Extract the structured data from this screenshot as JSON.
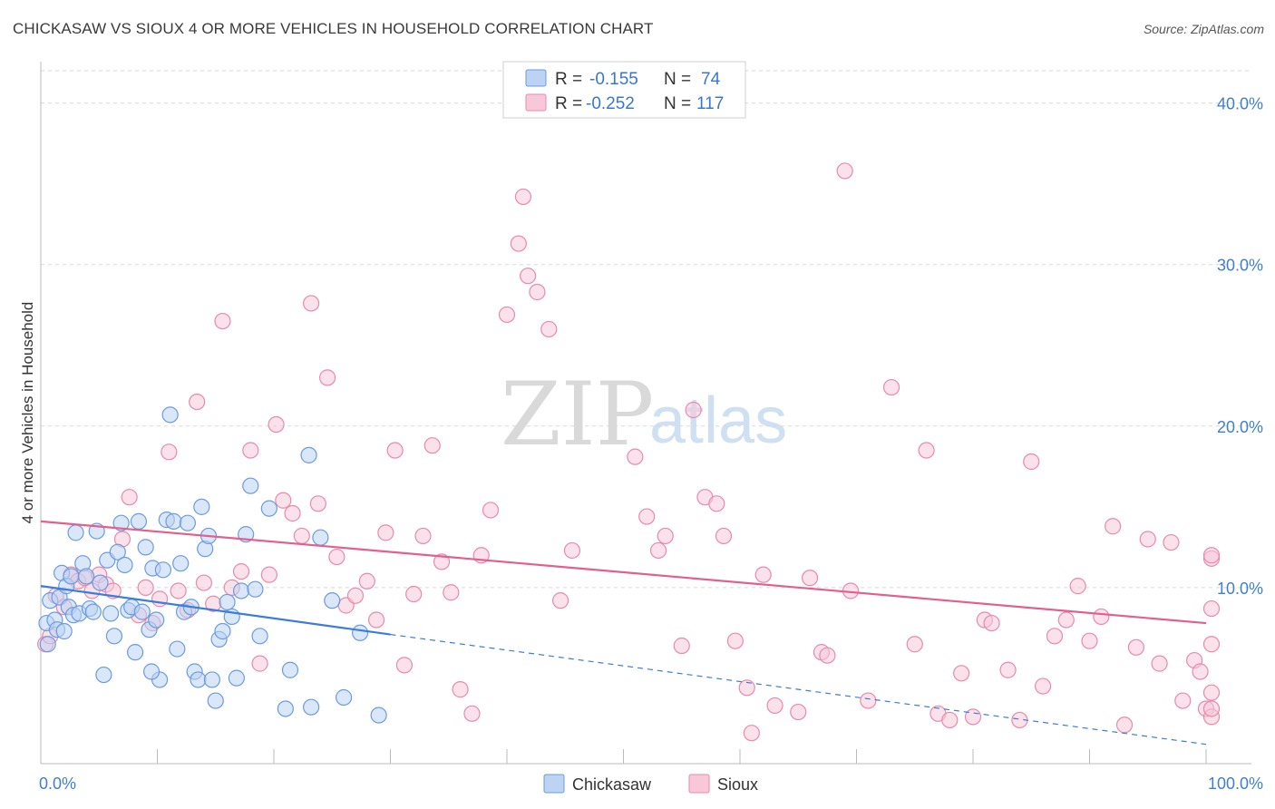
{
  "title": "CHICKASAW VS SIOUX 4 OR MORE VEHICLES IN HOUSEHOLD CORRELATION CHART",
  "source": "Source: ZipAtlas.com",
  "watermark": {
    "zip": "ZIP",
    "atlas": "atlas"
  },
  "legend": {
    "r_label": "R =",
    "n_label": "N =",
    "rows": [
      {
        "r": "-0.155",
        "n": "74",
        "fill": "#bcd3f3",
        "stroke": "#6b9be0"
      },
      {
        "r": "-0.252",
        "n": "117",
        "fill": "#f8c8d8",
        "stroke": "#e88aab"
      }
    ]
  },
  "bottom_legend": [
    {
      "label": "Chickasaw",
      "fill": "#bcd3f3",
      "stroke": "#6b9be0"
    },
    {
      "label": "Sioux",
      "fill": "#f8c8d8",
      "stroke": "#e88aab"
    }
  ],
  "chart_data": {
    "type": "scatter",
    "title": "CHICKASAW VS SIOUX 4 OR MORE VEHICLES IN HOUSEHOLD CORRELATION CHART",
    "xlabel": "",
    "ylabel": "4 or more Vehicles in Household",
    "xlim": [
      0,
      100
    ],
    "ylim": [
      0,
      42
    ],
    "x_tick_labels": [
      "0.0%",
      "100.0%"
    ],
    "y_ticks": [
      10,
      20,
      30,
      40
    ],
    "y_tick_labels": [
      "10.0%",
      "20.0%",
      "30.0%",
      "40.0%"
    ],
    "grid": true,
    "legend_position": "top-center",
    "colors": {
      "chickasaw": "#3b7dd8",
      "sioux": "#e0608e"
    },
    "series": [
      {
        "name": "Chickasaw",
        "trend": {
          "x": [
            0,
            30
          ],
          "y": [
            10.1,
            7.1
          ],
          "dashed_to": [
            100,
            0.3
          ]
        },
        "points": [
          [
            0.5,
            7.8
          ],
          [
            0.6,
            6.5
          ],
          [
            0.8,
            9.2
          ],
          [
            1.2,
            8.0
          ],
          [
            1.4,
            7.4
          ],
          [
            1.6,
            9.4
          ],
          [
            1.8,
            10.9
          ],
          [
            2.0,
            7.3
          ],
          [
            2.2,
            10.1
          ],
          [
            2.4,
            8.8
          ],
          [
            2.6,
            10.7
          ],
          [
            2.8,
            8.3
          ],
          [
            3.0,
            13.4
          ],
          [
            3.3,
            8.4
          ],
          [
            3.6,
            11.5
          ],
          [
            3.9,
            10.7
          ],
          [
            4.2,
            8.7
          ],
          [
            4.5,
            8.5
          ],
          [
            4.8,
            13.5
          ],
          [
            5.1,
            10.3
          ],
          [
            5.4,
            4.6
          ],
          [
            5.7,
            11.7
          ],
          [
            6.0,
            8.4
          ],
          [
            6.3,
            7.0
          ],
          [
            6.6,
            12.2
          ],
          [
            6.9,
            14.0
          ],
          [
            7.2,
            11.4
          ],
          [
            7.5,
            8.6
          ],
          [
            7.8,
            8.8
          ],
          [
            8.1,
            6.0
          ],
          [
            8.4,
            14.1
          ],
          [
            8.7,
            8.5
          ],
          [
            9.0,
            12.5
          ],
          [
            9.3,
            7.4
          ],
          [
            9.6,
            11.2
          ],
          [
            9.9,
            8.0
          ],
          [
            10.2,
            4.3
          ],
          [
            10.5,
            11.1
          ],
          [
            10.8,
            14.2
          ],
          [
            11.1,
            20.7
          ],
          [
            11.4,
            14.1
          ],
          [
            11.7,
            6.2
          ],
          [
            12.0,
            11.5
          ],
          [
            12.3,
            8.5
          ],
          [
            12.6,
            14.0
          ],
          [
            12.9,
            8.8
          ],
          [
            13.2,
            4.8
          ],
          [
            13.5,
            4.3
          ],
          [
            13.8,
            15.0
          ],
          [
            14.1,
            12.4
          ],
          [
            14.4,
            13.2
          ],
          [
            14.7,
            4.3
          ],
          [
            15.0,
            3.0
          ],
          [
            15.3,
            6.8
          ],
          [
            15.6,
            7.3
          ],
          [
            16.0,
            9.1
          ],
          [
            16.4,
            8.2
          ],
          [
            16.8,
            4.4
          ],
          [
            17.2,
            9.8
          ],
          [
            17.6,
            13.3
          ],
          [
            18.0,
            16.3
          ],
          [
            18.4,
            9.9
          ],
          [
            18.8,
            7.0
          ],
          [
            19.6,
            14.9
          ],
          [
            21.0,
            2.5
          ],
          [
            21.4,
            4.9
          ],
          [
            23.0,
            18.2
          ],
          [
            23.2,
            2.6
          ],
          [
            24.0,
            13.1
          ],
          [
            25.0,
            9.2
          ],
          [
            26.0,
            3.2
          ],
          [
            27.4,
            7.2
          ],
          [
            29.0,
            2.1
          ],
          [
            9.5,
            4.8
          ]
        ]
      },
      {
        "name": "Sioux",
        "trend": {
          "x": [
            0,
            100
          ],
          "y": [
            14.1,
            7.8
          ]
        },
        "points": [
          [
            0.4,
            6.5
          ],
          [
            0.8,
            7.0
          ],
          [
            1.3,
            9.5
          ],
          [
            2.0,
            8.8
          ],
          [
            2.6,
            10.8
          ],
          [
            3.2,
            10.4
          ],
          [
            3.8,
            10.6
          ],
          [
            4.4,
            9.8
          ],
          [
            5.0,
            10.8
          ],
          [
            5.6,
            10.2
          ],
          [
            6.2,
            9.8
          ],
          [
            7.0,
            13.0
          ],
          [
            7.6,
            15.6
          ],
          [
            8.4,
            8.3
          ],
          [
            9.0,
            10.0
          ],
          [
            9.6,
            7.8
          ],
          [
            10.2,
            9.3
          ],
          [
            11.0,
            18.4
          ],
          [
            11.8,
            9.8
          ],
          [
            12.6,
            8.6
          ],
          [
            13.4,
            21.5
          ],
          [
            14.0,
            10.3
          ],
          [
            14.8,
            9.0
          ],
          [
            15.6,
            26.5
          ],
          [
            16.4,
            10.0
          ],
          [
            17.2,
            11.0
          ],
          [
            18.0,
            18.5
          ],
          [
            18.8,
            5.3
          ],
          [
            19.6,
            10.8
          ],
          [
            20.2,
            20.1
          ],
          [
            20.8,
            15.4
          ],
          [
            21.6,
            14.6
          ],
          [
            22.4,
            13.2
          ],
          [
            23.2,
            27.6
          ],
          [
            23.8,
            15.2
          ],
          [
            24.6,
            23.0
          ],
          [
            25.4,
            11.9
          ],
          [
            26.2,
            8.9
          ],
          [
            27.0,
            9.5
          ],
          [
            28.0,
            10.4
          ],
          [
            28.8,
            8.0
          ],
          [
            29.6,
            13.4
          ],
          [
            30.4,
            18.5
          ],
          [
            31.2,
            5.2
          ],
          [
            32.0,
            9.6
          ],
          [
            32.8,
            13.2
          ],
          [
            33.6,
            18.8
          ],
          [
            34.4,
            11.6
          ],
          [
            35.2,
            9.7
          ],
          [
            36.0,
            3.7
          ],
          [
            37.0,
            2.2
          ],
          [
            37.8,
            12.0
          ],
          [
            38.6,
            14.8
          ],
          [
            40.0,
            26.9
          ],
          [
            41.0,
            31.3
          ],
          [
            41.4,
            34.2
          ],
          [
            41.8,
            29.3
          ],
          [
            42.6,
            28.3
          ],
          [
            43.6,
            26.0
          ],
          [
            44.6,
            9.2
          ],
          [
            45.6,
            12.3
          ],
          [
            51.0,
            18.1
          ],
          [
            52.0,
            14.4
          ],
          [
            53.0,
            12.3
          ],
          [
            53.6,
            13.2
          ],
          [
            55.0,
            6.4
          ],
          [
            56.0,
            21.0
          ],
          [
            57.0,
            15.6
          ],
          [
            58.0,
            15.2
          ],
          [
            58.6,
            13.2
          ],
          [
            59.6,
            6.7
          ],
          [
            60.6,
            3.8
          ],
          [
            61.0,
            1.0
          ],
          [
            62.0,
            10.8
          ],
          [
            63.0,
            2.7
          ],
          [
            65.0,
            2.3
          ],
          [
            66.0,
            10.6
          ],
          [
            67.0,
            6.0
          ],
          [
            67.5,
            5.8
          ],
          [
            69.0,
            35.8
          ],
          [
            69.5,
            9.8
          ],
          [
            71.0,
            3.0
          ],
          [
            73.0,
            22.4
          ],
          [
            75.0,
            6.5
          ],
          [
            76.0,
            18.5
          ],
          [
            77.0,
            2.2
          ],
          [
            78.0,
            1.8
          ],
          [
            79.0,
            4.7
          ],
          [
            80.0,
            2.0
          ],
          [
            81.0,
            8.0
          ],
          [
            81.6,
            7.8
          ],
          [
            83.0,
            4.9
          ],
          [
            84.0,
            1.8
          ],
          [
            85.0,
            17.8
          ],
          [
            86.0,
            3.9
          ],
          [
            87.0,
            7.0
          ],
          [
            88.0,
            8.0
          ],
          [
            89.0,
            10.1
          ],
          [
            90.0,
            6.7
          ],
          [
            91.0,
            8.2
          ],
          [
            92.0,
            13.8
          ],
          [
            93.0,
            1.5
          ],
          [
            94.0,
            6.3
          ],
          [
            95.0,
            13.0
          ],
          [
            96.0,
            5.3
          ],
          [
            97.0,
            12.8
          ],
          [
            98.0,
            3.0
          ],
          [
            99.0,
            5.5
          ],
          [
            99.5,
            4.8
          ],
          [
            100.0,
            2.5
          ],
          [
            100.5,
            8.7
          ],
          [
            101.5,
            3.5
          ],
          [
            102.0,
            11.8
          ],
          [
            102.5,
            2.0
          ],
          [
            103.0,
            12.0
          ],
          [
            103.5,
            2.5
          ],
          [
            104.5,
            6.5
          ]
        ]
      }
    ]
  }
}
